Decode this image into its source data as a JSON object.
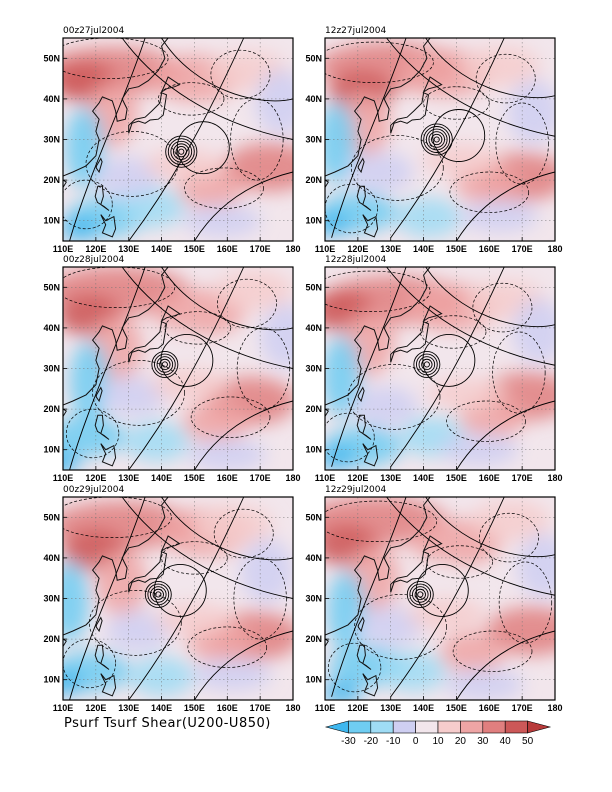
{
  "figure_label": "Psurf Tsurf Shear(U200-U850)",
  "panels": [
    {
      "title": "00z27jul2004",
      "cyclone": [
        146,
        27
      ],
      "rings": 6
    },
    {
      "title": "12z27jul2004",
      "cyclone": [
        144,
        30
      ],
      "rings": 6
    },
    {
      "title": "00z28jul2004",
      "cyclone": [
        141,
        31
      ],
      "rings": 5
    },
    {
      "title": "12z28jul2004",
      "cyclone": [
        141,
        31
      ],
      "rings": 5
    },
    {
      "title": "00z29jul2004",
      "cyclone": [
        139,
        31
      ],
      "rings": 5
    },
    {
      "title": "12z29jul2004",
      "cyclone": [
        139,
        31
      ],
      "rings": 5
    }
  ],
  "chart_data": {
    "type": "heatmap",
    "title": "Psurf Tsurf Shear(U200-U850)",
    "x_ticks": [
      "110E",
      "120E",
      "130E",
      "140E",
      "150E",
      "160E",
      "170E",
      "180"
    ],
    "y_ticks": [
      "10N",
      "20N",
      "30N",
      "40N",
      "50N"
    ],
    "xlim": [
      110,
      180
    ],
    "ylim": [
      5,
      55
    ],
    "grid": true,
    "colorbar": {
      "ticks": [
        "-30",
        "-20",
        "-10",
        "0",
        "10",
        "20",
        "30",
        "40",
        "50"
      ],
      "colors": [
        "#3fb7ee",
        "#6fcdf2",
        "#9fdcf5",
        "#cfcff2",
        "#f2e6ec",
        "#f6cccc",
        "#eea5a5",
        "#e07f7f",
        "#cc5858",
        "#b83a3a"
      ]
    }
  }
}
